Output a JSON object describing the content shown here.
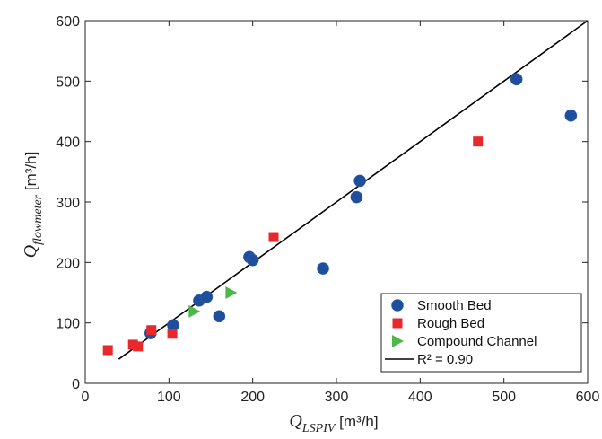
{
  "chart_data": {
    "type": "scatter",
    "xlabel": {
      "symbol": "Q",
      "subscript": "LSPIV",
      "unit": " [m³/h]"
    },
    "ylabel": {
      "symbol": "Q",
      "subscript": "flowmeter",
      "unit": " [m³/h]"
    },
    "xlim": [
      0,
      600
    ],
    "ylim": [
      0,
      600
    ],
    "xticks": [
      0,
      100,
      200,
      300,
      400,
      500,
      600
    ],
    "yticks": [
      0,
      100,
      200,
      300,
      400,
      500,
      600
    ],
    "grid": false,
    "legend_position": "bottom-right",
    "series": [
      {
        "name": "Smooth Bed",
        "marker": "circle",
        "color": "#1f4e9c",
        "points": [
          [
            78,
            83
          ],
          [
            105,
            96
          ],
          [
            136,
            137
          ],
          [
            145,
            143
          ],
          [
            160,
            111
          ],
          [
            196,
            209
          ],
          [
            200,
            204
          ],
          [
            284,
            190
          ],
          [
            324,
            308
          ],
          [
            328,
            335
          ],
          [
            515,
            503
          ],
          [
            580,
            443
          ]
        ]
      },
      {
        "name": "Rough Bed",
        "marker": "square",
        "color": "#e8282b",
        "points": [
          [
            27,
            55
          ],
          [
            57,
            64
          ],
          [
            63,
            61
          ],
          [
            79,
            88
          ],
          [
            104,
            82
          ],
          [
            225,
            242
          ],
          [
            469,
            400
          ]
        ]
      },
      {
        "name": "Compound Channel",
        "marker": "triangle-right",
        "color": "#4cb848",
        "points": [
          [
            130,
            119
          ],
          [
            174,
            150
          ]
        ]
      }
    ],
    "fit_line": {
      "name": "R² = 0.90",
      "color": "#000000",
      "points": [
        [
          40,
          40
        ],
        [
          600,
          600
        ]
      ]
    }
  }
}
